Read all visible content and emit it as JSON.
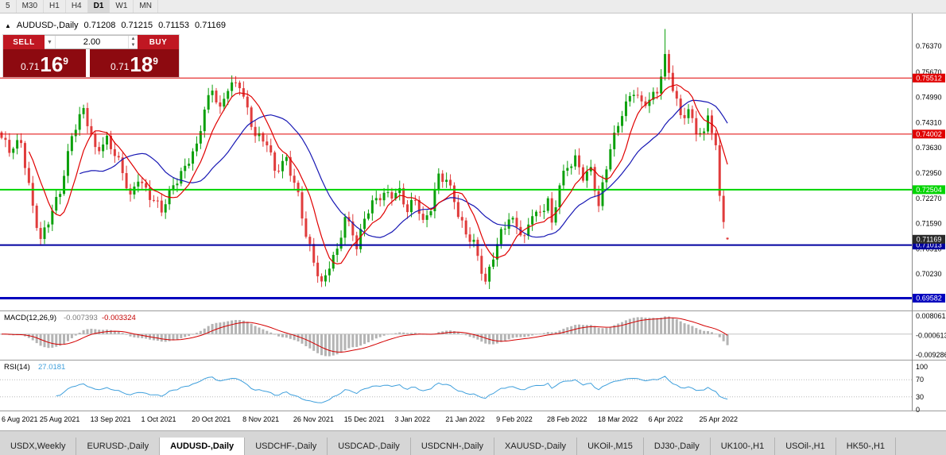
{
  "icons": {
    "dropdown": "▼",
    "spin_up": "▲",
    "spin_down": "▼",
    "symbol_marker": "▲"
  },
  "toolbar": {
    "timeframes": [
      {
        "label": "5",
        "active": false
      },
      {
        "label": "M30",
        "active": false
      },
      {
        "label": "H1",
        "active": false
      },
      {
        "label": "H4",
        "active": false
      },
      {
        "label": "D1",
        "active": true
      },
      {
        "label": "W1",
        "active": false
      },
      {
        "label": "MN",
        "active": false
      }
    ]
  },
  "chart_header": {
    "marker": "▲",
    "symbol": "AUDUSD-,Daily",
    "open": "0.71208",
    "high": "0.71215",
    "low": "0.71153",
    "close": "0.71169"
  },
  "trade_panel": {
    "sell_label": "SELL",
    "buy_label": "BUY",
    "volume": "2.00",
    "sell_price": {
      "big": "0.71",
      "main": "16",
      "sup": "9"
    },
    "buy_price": {
      "big": "0.71",
      "main": "18",
      "sup": "9"
    }
  },
  "chart_data": {
    "type": "candlestick",
    "symbol": "AUDUSD-",
    "timeframe": "Daily",
    "last_ohlc": {
      "open": 0.71208,
      "high": 0.71215,
      "low": 0.71153,
      "close": 0.71169
    },
    "price_max": 0.7725,
    "price_min": 0.6925,
    "price_axis_ticks": [
      "0.76370",
      "0.75670",
      "0.74990",
      "0.74310",
      "0.73630",
      "0.72950",
      "0.72270",
      "0.71590",
      "0.70910",
      "0.70230"
    ],
    "levels": [
      {
        "price": 0.75512,
        "color": "#e00000",
        "width": 1,
        "label": "0.75512"
      },
      {
        "price": 0.74002,
        "color": "#e00000",
        "width": 1,
        "label": "0.74002"
      },
      {
        "price": 0.72504,
        "color": "#00d400",
        "width": 2,
        "label": "0.72504"
      },
      {
        "price": 0.71013,
        "color": "#0000a0",
        "width": 2,
        "label": "0.71013"
      },
      {
        "price": 0.69582,
        "color": "#0000bE",
        "width": 3,
        "label": "0.69582"
      }
    ],
    "current_price": {
      "value": "0.71169",
      "bg": "#2a2a2a"
    },
    "bars_total": 187,
    "close_anchors": [
      [
        0,
        0.739
      ],
      [
        2,
        0.735
      ],
      [
        5,
        0.738
      ],
      [
        8,
        0.721
      ],
      [
        10,
        0.711
      ],
      [
        12,
        0.716
      ],
      [
        15,
        0.725
      ],
      [
        18,
        0.74
      ],
      [
        21,
        0.746
      ],
      [
        24,
        0.736
      ],
      [
        27,
        0.739
      ],
      [
        30,
        0.732
      ],
      [
        33,
        0.723
      ],
      [
        35,
        0.729
      ],
      [
        38,
        0.723
      ],
      [
        41,
        0.719
      ],
      [
        44,
        0.727
      ],
      [
        47,
        0.731
      ],
      [
        50,
        0.736
      ],
      [
        52,
        0.747
      ],
      [
        54,
        0.753
      ],
      [
        56,
        0.7465
      ],
      [
        58,
        0.752
      ],
      [
        61,
        0.7535
      ],
      [
        63,
        0.747
      ],
      [
        65,
        0.74
      ],
      [
        68,
        0.737
      ],
      [
        70,
        0.73
      ],
      [
        73,
        0.734
      ],
      [
        76,
        0.723
      ],
      [
        78,
        0.712
      ],
      [
        80,
        0.706
      ],
      [
        82,
        0.7
      ],
      [
        84,
        0.705
      ],
      [
        86,
        0.708
      ],
      [
        88,
        0.717
      ],
      [
        90,
        0.714
      ],
      [
        91,
        0.71
      ],
      [
        93,
        0.718
      ],
      [
        96,
        0.722
      ],
      [
        99,
        0.724
      ],
      [
        102,
        0.725
      ],
      [
        104,
        0.719
      ],
      [
        106,
        0.722
      ],
      [
        108,
        0.716
      ],
      [
        110,
        0.721
      ],
      [
        112,
        0.729
      ],
      [
        114,
        0.727
      ],
      [
        116,
        0.722
      ],
      [
        117,
        0.718
      ],
      [
        119,
        0.714
      ],
      [
        121,
        0.711
      ],
      [
        123,
        0.703
      ],
      [
        124,
        0.699
      ],
      [
        126,
        0.707
      ],
      [
        128,
        0.714
      ],
      [
        130,
        0.718
      ],
      [
        132,
        0.715
      ],
      [
        134,
        0.711
      ],
      [
        136,
        0.719
      ],
      [
        138,
        0.719
      ],
      [
        140,
        0.723
      ],
      [
        141,
        0.715
      ],
      [
        143,
        0.726
      ],
      [
        145,
        0.731
      ],
      [
        147,
        0.734
      ],
      [
        149,
        0.729
      ],
      [
        151,
        0.73
      ],
      [
        153,
        0.72
      ],
      [
        156,
        0.737
      ],
      [
        159,
        0.746
      ],
      [
        162,
        0.751
      ],
      [
        164,
        0.748
      ],
      [
        166,
        0.75
      ],
      [
        168,
        0.752
      ],
      [
        170,
        0.76
      ],
      [
        172,
        0.752
      ],
      [
        174,
        0.745
      ],
      [
        176,
        0.747
      ],
      [
        178,
        0.741
      ],
      [
        180,
        0.739
      ],
      [
        181,
        0.745
      ],
      [
        183,
        0.736
      ],
      [
        184,
        0.724
      ],
      [
        185,
        0.718
      ],
      [
        186,
        0.71169
      ]
    ],
    "x_labels": [
      {
        "bar": 0,
        "label": "6 Aug 2021"
      },
      {
        "bar": 13,
        "label": "25 Aug 2021"
      },
      {
        "bar": 26,
        "label": "13 Sep 2021"
      },
      {
        "bar": 39,
        "label": "1 Oct 2021"
      },
      {
        "bar": 52,
        "label": "20 Oct 2021"
      },
      {
        "bar": 65,
        "label": "8 Nov 2021"
      },
      {
        "bar": 78,
        "label": "26 Nov 2021"
      },
      {
        "bar": 91,
        "label": "15 Dec 2021"
      },
      {
        "bar": 104,
        "label": "3 Jan 2022"
      },
      {
        "bar": 117,
        "label": "21 Jan 2022"
      },
      {
        "bar": 130,
        "label": "9 Feb 2022"
      },
      {
        "bar": 143,
        "label": "28 Feb 2022"
      },
      {
        "bar": 156,
        "label": "18 Mar 2022"
      },
      {
        "bar": 169,
        "label": "6 Apr 2022"
      },
      {
        "bar": 182,
        "label": "25 Apr 2022"
      }
    ],
    "colors": {
      "up": "#0ca00c",
      "down": "#e03c3c",
      "ma_fast": "#e00000",
      "ma_slow": "#1818b4",
      "macd_hist": "#b4b4b4",
      "macd_signal": "#d40000",
      "rsi": "#3e9fdc",
      "grid": "#c8c8c8",
      "axis_text": "#000000"
    },
    "ma_fast_period": 8,
    "ma_slow_period": 21,
    "macd": {
      "label": "MACD(12,26,9)",
      "value_hist": "-0.007393",
      "value_signal": "-0.003324",
      "ticks": [
        "0.008061",
        "-0.000613",
        "-0.009286"
      ],
      "max": 0.0102,
      "min": -0.0114
    },
    "rsi": {
      "label": "RSI(14)",
      "value": "27.0181",
      "ticks": [
        "100",
        "70",
        "30",
        "0"
      ],
      "levels": [
        70,
        30
      ]
    }
  },
  "tabs": [
    {
      "label": "USDX,Weekly",
      "active": false
    },
    {
      "label": "EURUSD-,Daily",
      "active": false
    },
    {
      "label": "AUDUSD-,Daily",
      "active": true
    },
    {
      "label": "USDCHF-,Daily",
      "active": false
    },
    {
      "label": "USDCAD-,Daily",
      "active": false
    },
    {
      "label": "USDCNH-,Daily",
      "active": false
    },
    {
      "label": "XAUUSD-,Daily",
      "active": false
    },
    {
      "label": "UKOil-,M15",
      "active": false
    },
    {
      "label": "DJ30-,Daily",
      "active": false
    },
    {
      "label": "UK100-,H1",
      "active": false
    },
    {
      "label": "USOil-,H1",
      "active": false
    },
    {
      "label": "HK50-,H1",
      "active": false
    }
  ]
}
